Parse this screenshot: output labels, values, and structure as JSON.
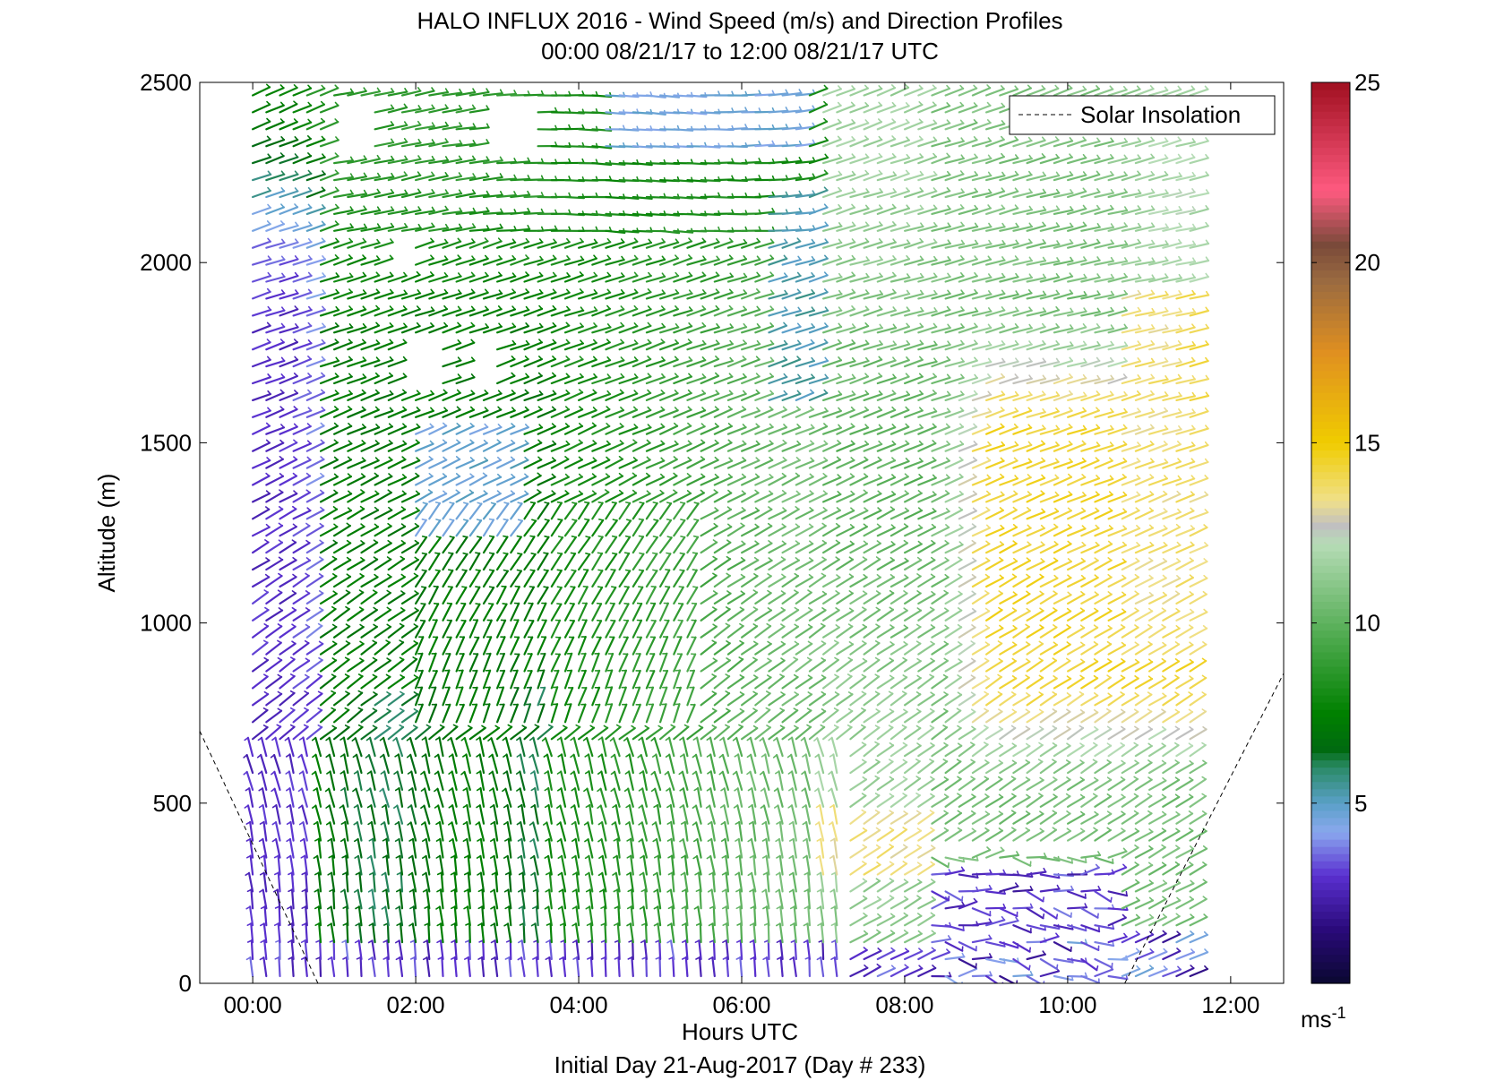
{
  "chart_data": {
    "type": "wind-barb-profile",
    "title": "HALO INFLUX 2016 - Wind Speed (m/s) and Direction Profiles",
    "subtitle": "00:00 08/21/17 to 12:00 08/21/17  UTC",
    "xlabel": "Hours UTC",
    "ylabel": "Altitude (m)",
    "footer": "Initial Day 21-Aug-2017 (Day # 233)",
    "xlim": [
      -0.65,
      12.65
    ],
    "ylim": [
      0,
      2500
    ],
    "xticks": [
      0,
      2,
      4,
      6,
      8,
      10,
      12
    ],
    "xtick_labels": [
      "00:00",
      "02:00",
      "04:00",
      "06:00",
      "08:00",
      "10:00",
      "12:00"
    ],
    "yticks": [
      0,
      500,
      1000,
      1500,
      2000,
      2500
    ],
    "ytick_labels": [
      "0",
      "500",
      "1000",
      "1500",
      "2000",
      "2500"
    ],
    "legend": {
      "position": "top-right",
      "entries": [
        {
          "label": "Solar Insolation",
          "style": "dashed",
          "color": "#000000"
        }
      ]
    },
    "colorbar": {
      "min": 0,
      "max": 25,
      "ticks": [
        5,
        10,
        15,
        20,
        25
      ],
      "tick_labels": [
        "5",
        "10",
        "15",
        "20",
        "25"
      ],
      "unit_base": "ms",
      "unit_exp": "-1",
      "stops": [
        {
          "v": 0.0,
          "c": "#0a0830"
        },
        {
          "v": 1.5,
          "c": "#2a0a7a"
        },
        {
          "v": 3.0,
          "c": "#5a30d0"
        },
        {
          "v": 4.2,
          "c": "#8aa8ee"
        },
        {
          "v": 5.0,
          "c": "#5aa0c8"
        },
        {
          "v": 6.0,
          "c": "#2a8a66"
        },
        {
          "v": 6.5,
          "c": "#006a10"
        },
        {
          "v": 7.5,
          "c": "#008000"
        },
        {
          "v": 9.5,
          "c": "#4aa84a"
        },
        {
          "v": 12.2,
          "c": "#b6dcb6"
        },
        {
          "v": 12.7,
          "c": "#c0c0c0"
        },
        {
          "v": 13.4,
          "c": "#f0e08a"
        },
        {
          "v": 15.0,
          "c": "#f0cc00"
        },
        {
          "v": 17.5,
          "c": "#e09020"
        },
        {
          "v": 19.5,
          "c": "#9a6a40"
        },
        {
          "v": 20.5,
          "c": "#7a4a3a"
        },
        {
          "v": 22.0,
          "c": "#ff5a80"
        },
        {
          "v": 25.0,
          "c": "#a01020"
        }
      ]
    },
    "solar_insolation": {
      "morning": [
        [
          -0.65,
          700
        ],
        [
          0.8,
          0
        ]
      ],
      "evening": [
        [
          10.7,
          0
        ],
        [
          12.65,
          860
        ]
      ]
    },
    "barbs": {
      "time_start": 0.0,
      "time_step": 0.1667,
      "time_count": 70,
      "alt_start": 20,
      "alt_step": 47,
      "alt_count": 53
    }
  }
}
